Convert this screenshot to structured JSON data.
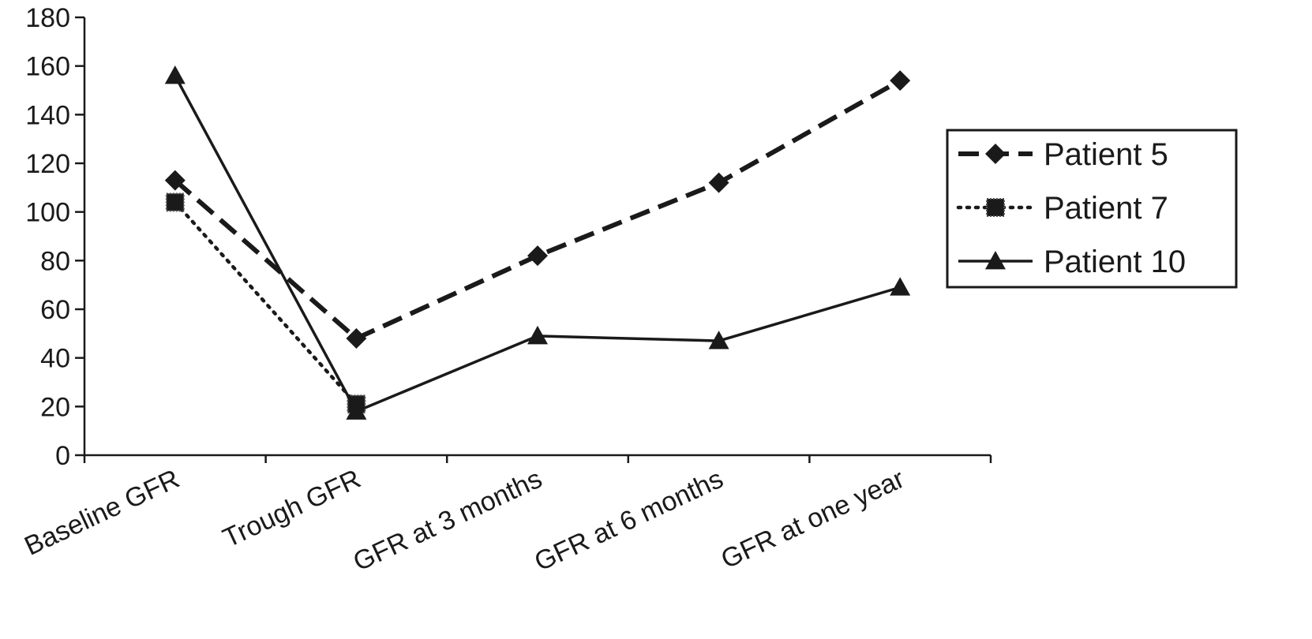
{
  "chart_data": {
    "type": "line",
    "categories": [
      "Baseline GFR",
      "Trough GFR",
      "GFR at 3 months",
      "GFR at 6 months",
      "GFR at one year"
    ],
    "ylim": [
      0,
      180
    ],
    "yticks": [
      0,
      20,
      40,
      60,
      80,
      100,
      120,
      140,
      160,
      180
    ],
    "grid": false,
    "legend_position": "right",
    "series": [
      {
        "name": "Patient 5",
        "values": [
          113,
          48,
          82,
          112,
          154
        ],
        "line_style": "dashed",
        "marker": "diamond",
        "color": "#1a1a1a"
      },
      {
        "name": "Patient 7",
        "values": [
          104,
          21,
          null,
          null,
          null
        ],
        "line_style": "dotted",
        "marker": "square",
        "color": "#1a1a1a"
      },
      {
        "name": "Patient 10",
        "values": [
          156,
          18,
          49,
          47,
          69
        ],
        "line_style": "solid",
        "marker": "triangle",
        "color": "#1a1a1a"
      }
    ]
  }
}
